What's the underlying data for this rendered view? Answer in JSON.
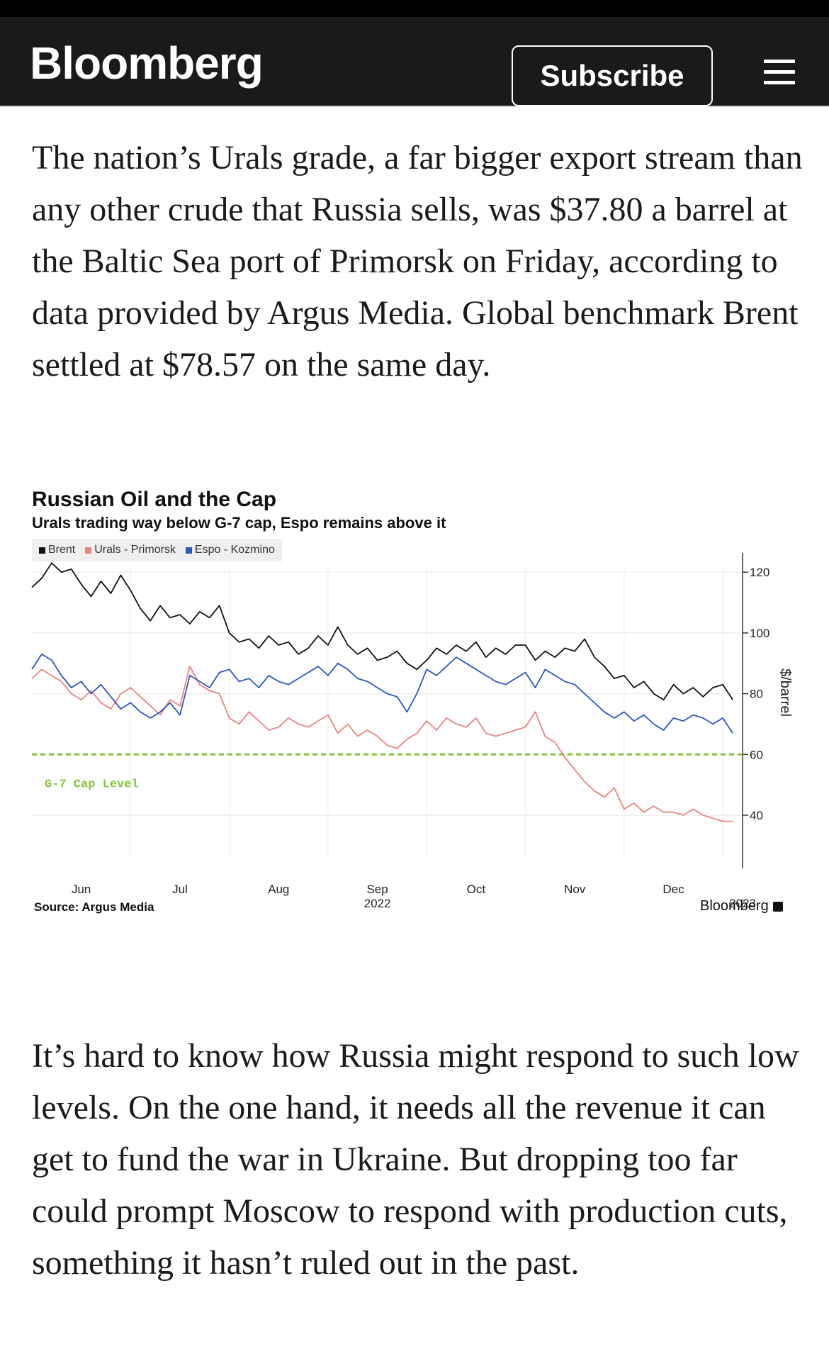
{
  "header": {
    "logo": "Bloomberg",
    "subscribe_label": "Subscribe",
    "menu_icon": "hamburger-menu-icon"
  },
  "article": {
    "paragraph1": "The nation’s Urals grade, a far bigger export stream than any other crude that Russia sells, was $37.80 a barrel at the Baltic Sea port of Primorsk on Friday, according to data provided by Argus Media. Global benchmark Brent settled at $78.57 on the same day.",
    "paragraph2": "It’s hard to know how Russia might respond to such low levels. On the one hand, it needs all the revenue it can get to fund the war in Ukraine. But dropping too far could prompt Moscow to respond with production cuts, something it hasn’t ruled out in the past."
  },
  "chart_data": {
    "type": "line",
    "title": "Russian Oil and the Cap",
    "subtitle": "Urals trading way below G-7 cap, Espo remains above it",
    "ylabel": "$/barrel",
    "ylim": [
      26,
      131
    ],
    "yticks": [
      40,
      60,
      80,
      100,
      120
    ],
    "xlim": [
      0,
      7.2
    ],
    "xticks": [
      {
        "pos": 0.5,
        "label": "Jun",
        "sub": ""
      },
      {
        "pos": 1.5,
        "label": "Jul",
        "sub": ""
      },
      {
        "pos": 2.5,
        "label": "Aug",
        "sub": ""
      },
      {
        "pos": 3.5,
        "label": "Sep",
        "sub": "2022"
      },
      {
        "pos": 4.5,
        "label": "Oct",
        "sub": ""
      },
      {
        "pos": 5.5,
        "label": "Nov",
        "sub": ""
      },
      {
        "pos": 6.5,
        "label": "Dec",
        "sub": ""
      },
      {
        "pos": 7.2,
        "label": "",
        "sub": "2023"
      }
    ],
    "reference_line": {
      "value": 60,
      "label": "G-7 Cap Level",
      "color": "#86c43c"
    },
    "legend_position": "top-left",
    "series": [
      {
        "name": "Brent",
        "color": "#111111",
        "x": [
          0,
          0.1,
          0.2,
          0.3,
          0.4,
          0.5,
          0.6,
          0.7,
          0.8,
          0.9,
          1.0,
          1.1,
          1.2,
          1.3,
          1.4,
          1.5,
          1.6,
          1.7,
          1.8,
          1.9,
          2.0,
          2.1,
          2.2,
          2.3,
          2.4,
          2.5,
          2.6,
          2.7,
          2.8,
          2.9,
          3.0,
          3.1,
          3.2,
          3.3,
          3.4,
          3.5,
          3.6,
          3.7,
          3.8,
          3.9,
          4.0,
          4.1,
          4.2,
          4.3,
          4.4,
          4.5,
          4.6,
          4.7,
          4.8,
          4.9,
          5.0,
          5.1,
          5.2,
          5.3,
          5.4,
          5.5,
          5.6,
          5.7,
          5.8,
          5.9,
          6.0,
          6.1,
          6.2,
          6.3,
          6.4,
          6.5,
          6.6,
          6.7,
          6.8,
          6.9,
          7.0,
          7.1
        ],
        "values": [
          115,
          118,
          123,
          120,
          121,
          116,
          112,
          117,
          113,
          119,
          114,
          108,
          104,
          109,
          105,
          106,
          103,
          107,
          105,
          109,
          100,
          97,
          98,
          95,
          99,
          96,
          97,
          93,
          95,
          99,
          96,
          102,
          96,
          93,
          95,
          91,
          92,
          94,
          90,
          88,
          91,
          95,
          93,
          96,
          94,
          97,
          92,
          95,
          93,
          96,
          96,
          91,
          94,
          92,
          95,
          94,
          98,
          92,
          89,
          85,
          86,
          82,
          84,
          80,
          78,
          83,
          80,
          82,
          79,
          82,
          83,
          78
        ]
      },
      {
        "name": "Urals - Primorsk",
        "color": "#e8847e",
        "x": [
          0,
          0.1,
          0.2,
          0.3,
          0.4,
          0.5,
          0.6,
          0.7,
          0.8,
          0.9,
          1.0,
          1.1,
          1.2,
          1.3,
          1.4,
          1.5,
          1.6,
          1.7,
          1.8,
          1.9,
          2.0,
          2.1,
          2.2,
          2.3,
          2.4,
          2.5,
          2.6,
          2.7,
          2.8,
          2.9,
          3.0,
          3.1,
          3.2,
          3.3,
          3.4,
          3.5,
          3.6,
          3.7,
          3.8,
          3.9,
          4.0,
          4.1,
          4.2,
          4.3,
          4.4,
          4.5,
          4.6,
          4.7,
          4.8,
          4.9,
          5.0,
          5.1,
          5.2,
          5.3,
          5.4,
          5.5,
          5.6,
          5.7,
          5.8,
          5.9,
          6.0,
          6.1,
          6.2,
          6.3,
          6.4,
          6.5,
          6.6,
          6.7,
          6.8,
          6.9,
          7.0,
          7.1
        ],
        "values": [
          85,
          88,
          86,
          84,
          80,
          78,
          81,
          77,
          75,
          80,
          82,
          79,
          76,
          73,
          78,
          76,
          89,
          83,
          81,
          80,
          72,
          70,
          74,
          71,
          68,
          69,
          72,
          70,
          69,
          71,
          73,
          67,
          70,
          66,
          68,
          66,
          63,
          62,
          65,
          67,
          71,
          68,
          72,
          70,
          69,
          72,
          67,
          66,
          67,
          68,
          69,
          74,
          66,
          64,
          59,
          55,
          51,
          48,
          46,
          49,
          42,
          44,
          41,
          43,
          41,
          41,
          40,
          42,
          40,
          39,
          38,
          38
        ]
      },
      {
        "name": "Espo - Kozmino",
        "color": "#2b57c4",
        "x": [
          0,
          0.1,
          0.2,
          0.3,
          0.4,
          0.5,
          0.6,
          0.7,
          0.8,
          0.9,
          1.0,
          1.1,
          1.2,
          1.3,
          1.4,
          1.5,
          1.6,
          1.7,
          1.8,
          1.9,
          2.0,
          2.1,
          2.2,
          2.3,
          2.4,
          2.5,
          2.6,
          2.7,
          2.8,
          2.9,
          3.0,
          3.1,
          3.2,
          3.3,
          3.4,
          3.5,
          3.6,
          3.7,
          3.8,
          3.9,
          4.0,
          4.1,
          4.2,
          4.3,
          4.4,
          4.5,
          4.6,
          4.7,
          4.8,
          4.9,
          5.0,
          5.1,
          5.2,
          5.3,
          5.4,
          5.5,
          5.6,
          5.7,
          5.8,
          5.9,
          6.0,
          6.1,
          6.2,
          6.3,
          6.4,
          6.5,
          6.6,
          6.7,
          6.8,
          6.9,
          7.0,
          7.1
        ],
        "values": [
          88,
          93,
          91,
          86,
          82,
          84,
          80,
          83,
          79,
          75,
          77,
          74,
          72,
          74,
          77,
          73,
          86,
          84,
          82,
          87,
          88,
          84,
          85,
          82,
          86,
          84,
          83,
          85,
          87,
          89,
          86,
          90,
          88,
          85,
          84,
          82,
          80,
          79,
          74,
          80,
          88,
          86,
          89,
          92,
          90,
          88,
          86,
          84,
          83,
          85,
          87,
          82,
          88,
          86,
          84,
          83,
          80,
          77,
          74,
          72,
          74,
          71,
          73,
          70,
          68,
          72,
          71,
          73,
          72,
          70,
          72,
          67
        ]
      }
    ],
    "source": "Source: Argus Media",
    "brand": "Bloomberg"
  }
}
